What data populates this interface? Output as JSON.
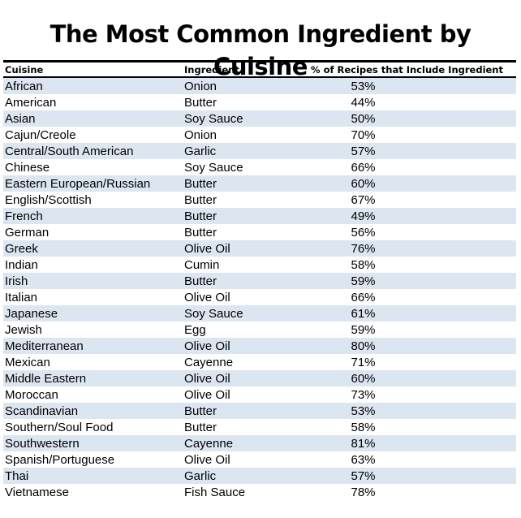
{
  "title": "The Most Common Ingredient by Cuisine",
  "table": {
    "headers": [
      "Cuisine",
      "Ingredient",
      "% of Recipes that Include Ingredient"
    ],
    "rows": [
      [
        "African",
        "Onion",
        "53%"
      ],
      [
        "American",
        "Butter",
        "44%"
      ],
      [
        "Asian",
        "Soy Sauce",
        "50%"
      ],
      [
        "Cajun/Creole",
        "Onion",
        "70%"
      ],
      [
        "Central/South American",
        "Garlic",
        "57%"
      ],
      [
        "Chinese",
        "Soy Sauce",
        "66%"
      ],
      [
        "Eastern European/Russian",
        "Butter",
        "60%"
      ],
      [
        "English/Scottish",
        "Butter",
        "67%"
      ],
      [
        "French",
        "Butter",
        "49%"
      ],
      [
        "German",
        "Butter",
        "56%"
      ],
      [
        "Greek",
        "Olive Oil",
        "76%"
      ],
      [
        "Indian",
        "Cumin",
        "58%"
      ],
      [
        "Irish",
        "Butter",
        "59%"
      ],
      [
        "Italian",
        "Olive Oil",
        "66%"
      ],
      [
        "Japanese",
        "Soy Sauce",
        "61%"
      ],
      [
        "Jewish",
        "Egg",
        "59%"
      ],
      [
        "Mediterranean",
        "Olive Oil",
        "80%"
      ],
      [
        "Mexican",
        "Cayenne",
        "71%"
      ],
      [
        "Middle Eastern",
        "Olive Oil",
        "60%"
      ],
      [
        "Moroccan",
        "Olive Oil",
        "73%"
      ],
      [
        "Scandinavian",
        "Butter",
        "53%"
      ],
      [
        "Southern/Soul Food",
        "Butter",
        "58%"
      ],
      [
        "Southwestern",
        "Cayenne",
        "81%"
      ],
      [
        "Spanish/Portuguese",
        "Olive Oil",
        "63%"
      ],
      [
        "Thai",
        "Garlic",
        "57%"
      ],
      [
        "Vietnamese",
        "Fish Sauce",
        "78%"
      ]
    ]
  },
  "colors": {
    "row_stripe": "#dce6f1",
    "rule": "#000000"
  }
}
